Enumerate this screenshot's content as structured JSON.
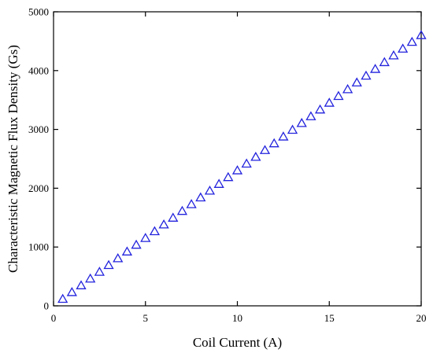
{
  "chart_data": {
    "type": "scatter",
    "xlabel": "Coil Current (A)",
    "ylabel": "Characteristic Magnetic Flux Density (Gs)",
    "xlim": [
      0,
      20
    ],
    "ylim": [
      0,
      5000
    ],
    "xticks": [
      0,
      5,
      10,
      15,
      20
    ],
    "yticks": [
      0,
      1000,
      2000,
      3000,
      4000,
      5000
    ],
    "grid": false,
    "marker": "open-triangle",
    "marker_color": "#2222dd",
    "series": [
      {
        "x": [
          0.5,
          1.0,
          1.5,
          2.0,
          2.5,
          3.0,
          3.5,
          4.0,
          4.5,
          5.0,
          5.5,
          6.0,
          6.5,
          7.0,
          7.5,
          8.0,
          8.5,
          9.0,
          9.5,
          10.0,
          10.5,
          11.0,
          11.5,
          12.0,
          12.5,
          13.0,
          13.5,
          14.0,
          14.5,
          15.0,
          15.5,
          16.0,
          16.5,
          17.0,
          17.5,
          18.0,
          18.5,
          19.0,
          19.5,
          20.0
        ],
        "y": [
          115,
          230,
          345,
          460,
          575,
          690,
          805,
          920,
          1035,
          1150,
          1265,
          1380,
          1495,
          1610,
          1725,
          1840,
          1955,
          2070,
          2185,
          2300,
          2415,
          2530,
          2645,
          2760,
          2875,
          2990,
          3105,
          3220,
          3335,
          3450,
          3565,
          3680,
          3795,
          3910,
          4025,
          4140,
          4255,
          4370,
          4485,
          4600
        ]
      }
    ]
  }
}
